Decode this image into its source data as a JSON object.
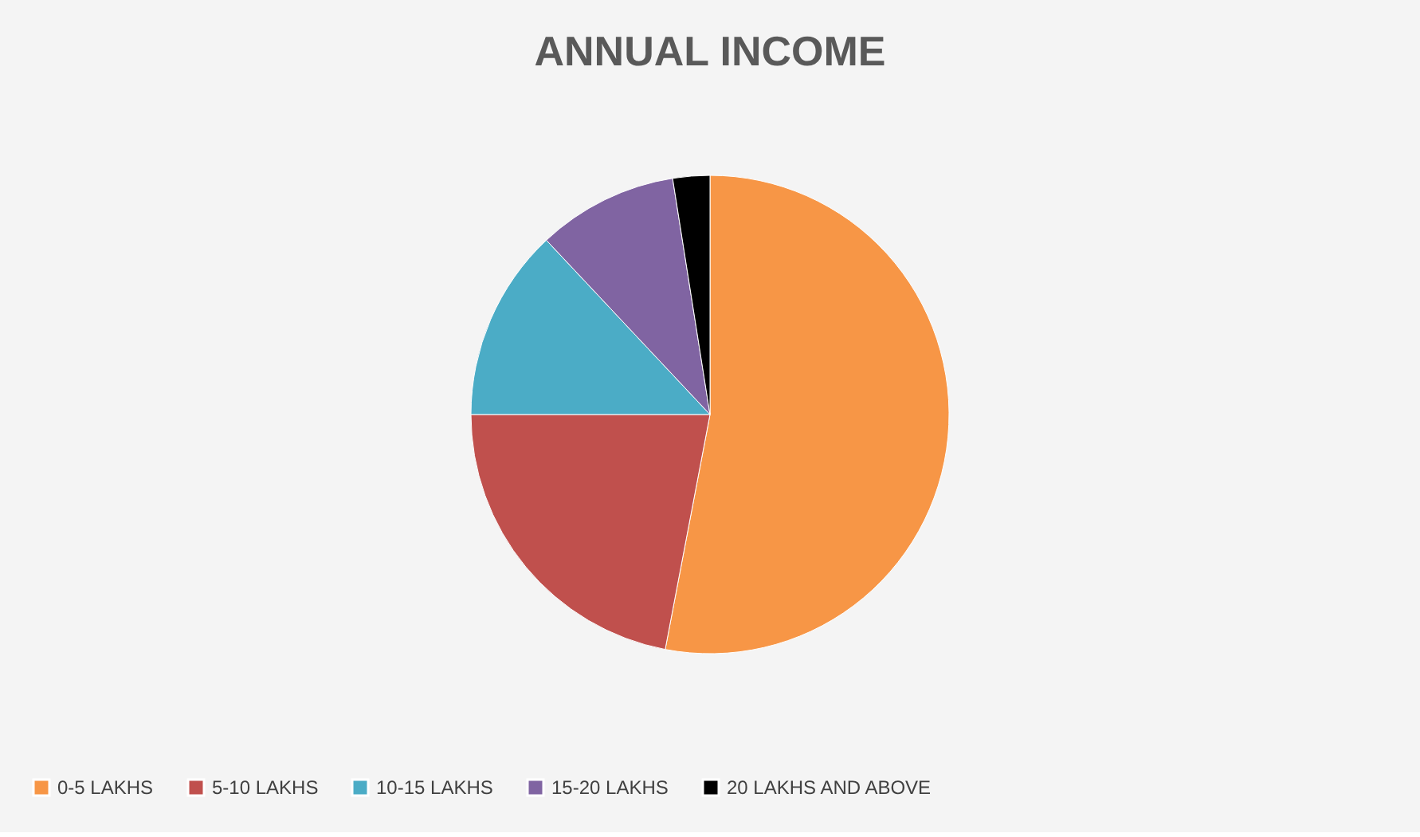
{
  "chart_data": {
    "type": "pie",
    "title": "ANNUAL INCOME",
    "categories": [
      "0-5 LAKHS",
      "5-10 LAKHS",
      "10-15 LAKHS",
      "15-20 LAKHS",
      "20 LAKHS AND ABOVE"
    ],
    "values": [
      53,
      22,
      13,
      9.5,
      2.5
    ],
    "colors": [
      "#f79646",
      "#c0504d",
      "#4bacc6",
      "#8064a2",
      "#000000"
    ],
    "legend": "bottom"
  }
}
